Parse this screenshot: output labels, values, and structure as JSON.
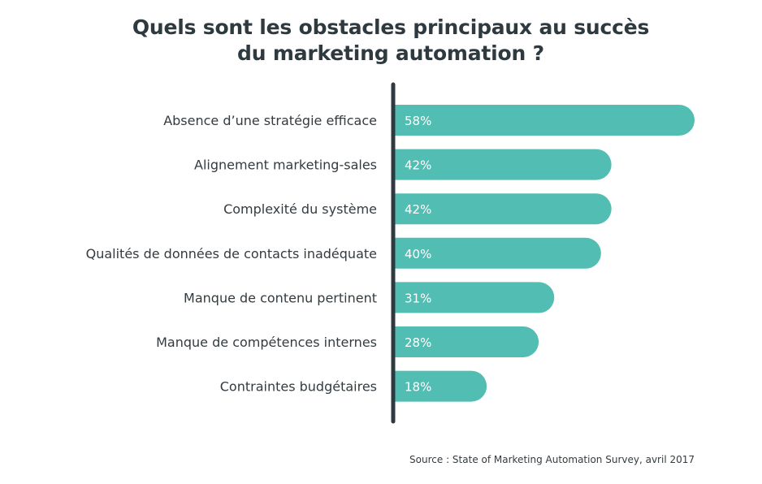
{
  "chart_data": {
    "type": "bar",
    "orientation": "horizontal",
    "title": "Quels sont les obstacles principaux au succès du marketing automation ?",
    "title_lines": [
      "Quels sont les obstacles principaux au succès",
      "du marketing automation ?"
    ],
    "categories": [
      "Absence d’une stratégie efficace",
      "Alignement marketing-sales",
      "Complexité du système",
      "Qualités de données de contacts inadéquate",
      "Manque de contenu pertinent",
      "Manque de compétences internes",
      "Contraintes budgétaires"
    ],
    "values": [
      58,
      42,
      42,
      40,
      31,
      28,
      18
    ],
    "value_labels": [
      "58%",
      "42%",
      "42%",
      "40%",
      "31%",
      "28%",
      "18%"
    ],
    "unit": "%",
    "xlim": [
      0,
      58
    ],
    "grid": false,
    "legend": "none",
    "colors": {
      "bar": "#52bdb2",
      "axis": "#2f3a40",
      "label": "#333b40",
      "value_label": "#ffffff"
    }
  },
  "source": "Source : State of Marketing Automation Survey, avril 2017"
}
